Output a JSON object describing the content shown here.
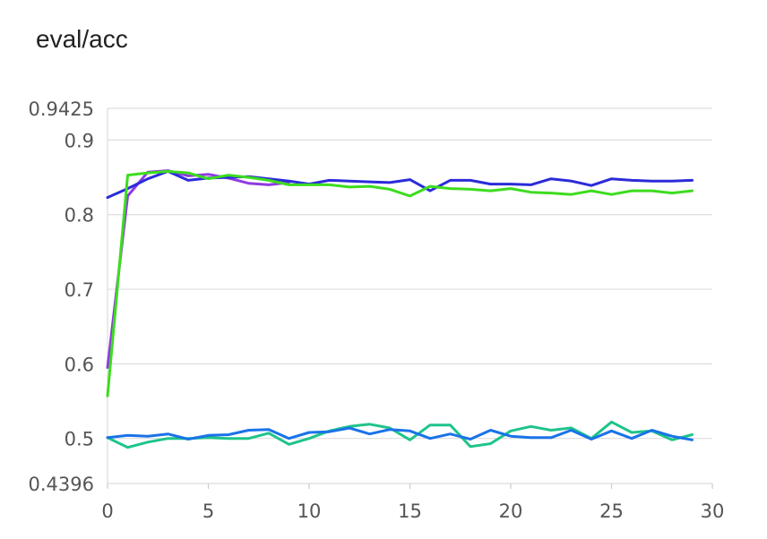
{
  "title": "eval/acc",
  "chart_data": {
    "type": "line",
    "title": "eval/acc",
    "xlabel": "",
    "ylabel": "",
    "xlim": [
      0,
      30
    ],
    "ylim": [
      0.4396,
      0.9425
    ],
    "grid": true,
    "x_ticks": [
      "0",
      "5",
      "10",
      "15",
      "20",
      "25",
      "30"
    ],
    "y_ticks": [
      "0.4396",
      "0.5",
      "0.6",
      "0.7",
      "0.8",
      "0.9",
      "0.9425"
    ],
    "x": [
      0,
      1,
      2,
      3,
      4,
      5,
      6,
      7,
      8,
      9,
      10,
      11,
      12,
      13,
      14,
      15,
      16,
      17,
      18,
      19,
      20,
      21,
      22,
      23,
      24,
      25,
      26,
      27,
      28,
      29
    ],
    "series": [
      {
        "color": "#8e3be0",
        "values": [
          0.595,
          0.825,
          0.857,
          0.859,
          0.852,
          0.854,
          0.849,
          0.842,
          0.84,
          0.843,
          null,
          null,
          null,
          null,
          null,
          null,
          null,
          null,
          null,
          null,
          null,
          null,
          null,
          null,
          null,
          null,
          null,
          null,
          null,
          null
        ]
      },
      {
        "color": "#2b2bd9",
        "values": [
          0.823,
          0.835,
          0.848,
          0.858,
          0.846,
          0.849,
          0.85,
          0.851,
          0.848,
          0.845,
          0.841,
          0.846,
          0.845,
          0.844,
          0.843,
          0.847,
          0.832,
          0.846,
          0.846,
          0.841,
          0.841,
          0.84,
          0.848,
          0.845,
          0.839,
          0.848,
          0.846,
          0.845,
          0.845,
          0.846
        ]
      },
      {
        "color": "#3ddc1e",
        "values": [
          0.557,
          0.853,
          0.856,
          0.858,
          0.856,
          0.848,
          0.853,
          0.85,
          0.846,
          0.84,
          0.84,
          0.84,
          0.837,
          0.838,
          0.834,
          0.825,
          0.838,
          0.835,
          0.834,
          0.832,
          0.835,
          0.83,
          0.829,
          0.827,
          0.832,
          0.827,
          0.832,
          0.832,
          0.829,
          0.832
        ]
      },
      {
        "color": "#1ec48a",
        "values": [
          0.501,
          0.488,
          0.495,
          0.5,
          0.5,
          0.501,
          0.5,
          0.5,
          0.507,
          0.492,
          0.5,
          0.51,
          0.516,
          0.519,
          0.514,
          0.498,
          0.518,
          0.518,
          0.489,
          0.493,
          0.51,
          0.516,
          0.511,
          0.514,
          0.5,
          0.522,
          0.508,
          0.51,
          0.498,
          0.505
        ]
      },
      {
        "color": "#1a73e8",
        "values": [
          0.501,
          0.504,
          0.503,
          0.506,
          0.499,
          0.504,
          0.505,
          0.511,
          0.512,
          0.5,
          0.508,
          0.509,
          0.514,
          0.506,
          0.512,
          0.51,
          0.5,
          0.506,
          0.499,
          0.511,
          0.503,
          0.501,
          0.501,
          0.511,
          0.499,
          0.51,
          0.5,
          0.511,
          0.503,
          0.498
        ]
      }
    ]
  }
}
